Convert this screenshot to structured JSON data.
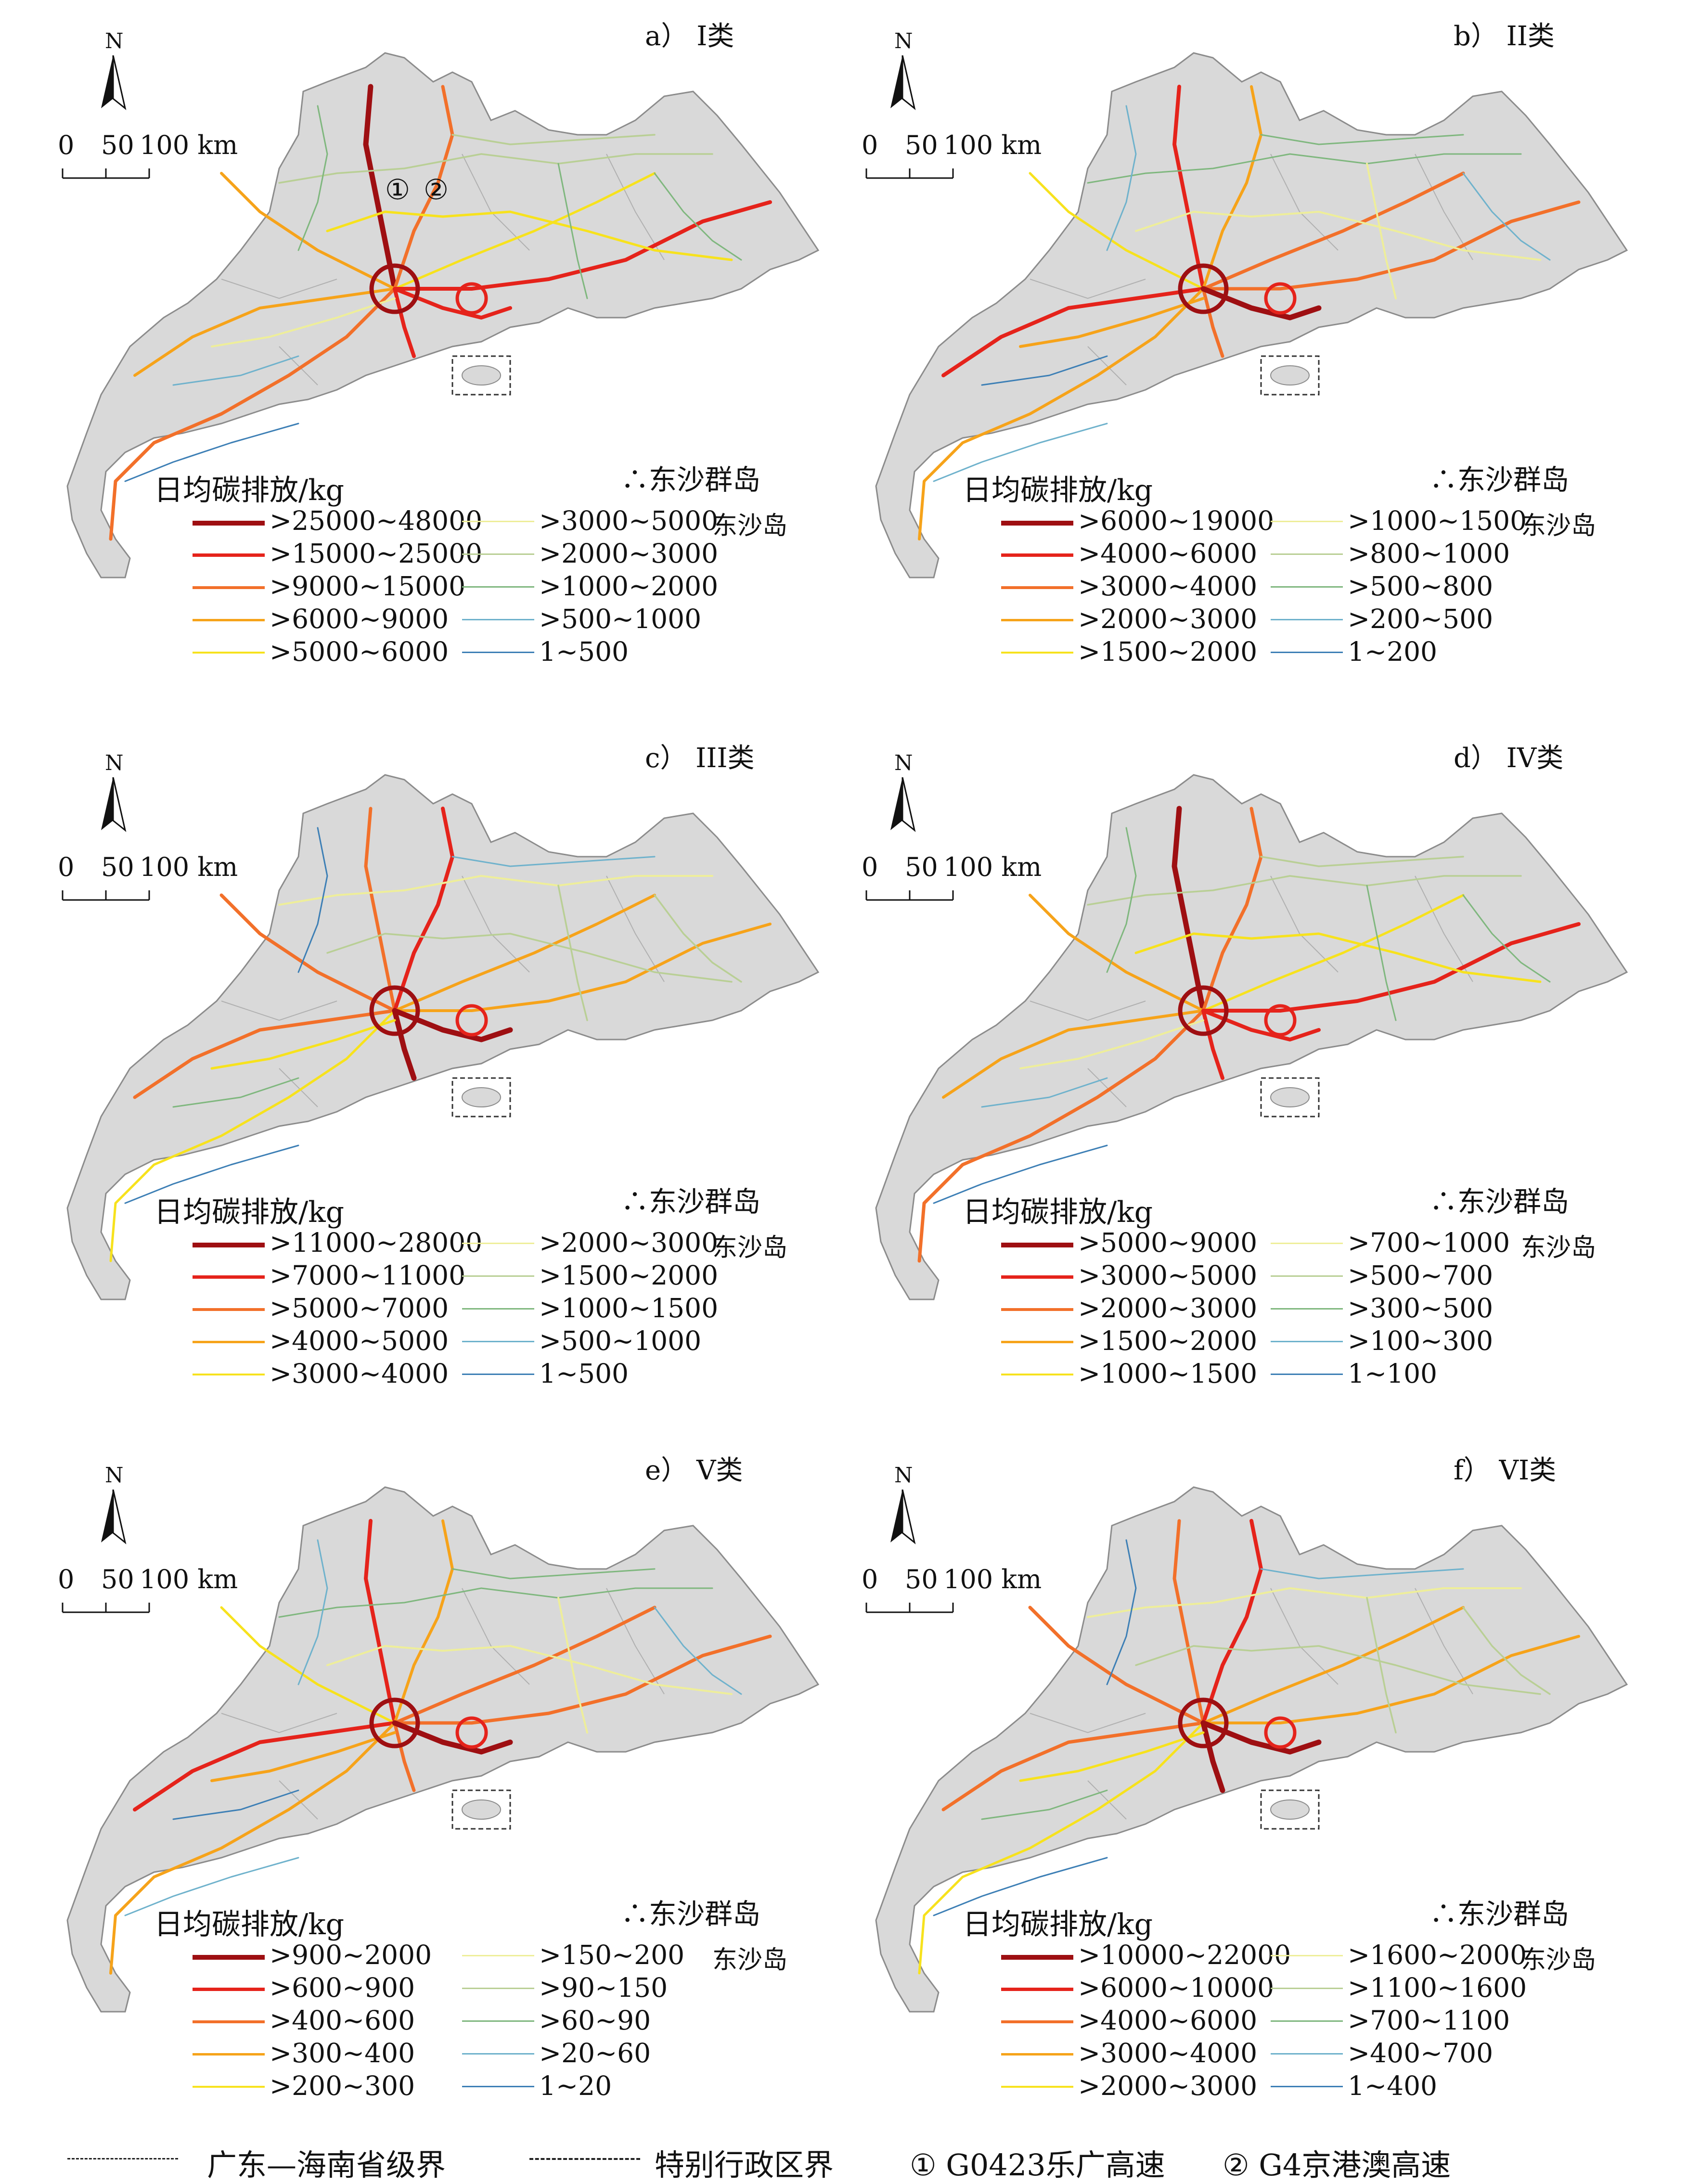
{
  "legend_title": "日均碳排放/kg",
  "island_group": "东沙群岛",
  "island": "东沙岛",
  "north_label": "N",
  "scale": {
    "ticks": [
      "0",
      "50",
      "100 km"
    ]
  },
  "class_colors": [
    "#9e0f12",
    "#e5231b",
    "#f2702a",
    "#f6a31a",
    "#f7e21d",
    "#eeee9a",
    "#b9cf95",
    "#7fb77e",
    "#6fb2cc",
    "#3d7fb5"
  ],
  "panels": [
    {
      "title": "a） I类",
      "markers": [
        "①",
        "②"
      ],
      "legend_left": [
        ">25000~48000",
        ">15000~25000",
        ">9000~15000",
        ">6000~9000",
        ">5000~6000"
      ],
      "legend_right": [
        ">3000~5000",
        ">2000~3000",
        ">1000~2000",
        ">500~1000",
        "1~500"
      ]
    },
    {
      "title": "b） II类",
      "legend_left": [
        ">6000~19000",
        ">4000~6000",
        ">3000~4000",
        ">2000~3000",
        ">1500~2000"
      ],
      "legend_right": [
        ">1000~1500",
        ">800~1000",
        ">500~800",
        ">200~500",
        "1~200"
      ]
    },
    {
      "title": "c） III类",
      "legend_left": [
        ">11000~28000",
        ">7000~11000",
        ">5000~7000",
        ">4000~5000",
        ">3000~4000"
      ],
      "legend_right": [
        ">2000~3000",
        ">1500~2000",
        ">1000~1500",
        ">500~1000",
        "1~500"
      ]
    },
    {
      "title": "d） IV类",
      "legend_left": [
        ">5000~9000",
        ">3000~5000",
        ">2000~3000",
        ">1500~2000",
        ">1000~1500"
      ],
      "legend_right": [
        ">700~1000",
        ">500~700",
        ">300~500",
        ">100~300",
        "1~100"
      ]
    },
    {
      "title": "e） V类",
      "legend_left": [
        ">900~2000",
        ">600~900",
        ">400~600",
        ">300~400",
        ">200~300"
      ],
      "legend_right": [
        ">150~200",
        ">90~150",
        ">60~90",
        ">20~60",
        "1~20"
      ]
    },
    {
      "title": "f） VI类",
      "legend_left": [
        ">10000~22000",
        ">6000~10000",
        ">4000~6000",
        ">3000~4000",
        ">2000~3000"
      ],
      "legend_right": [
        ">1600~2000",
        ">1100~1600",
        ">700~1100",
        ">400~700",
        "1~400"
      ]
    }
  ],
  "bottom_legend": {
    "province_border": "广东—海南省级界",
    "sar_border": "特别行政区界",
    "road1": "① G0423乐广高速",
    "road2": "② G4京港澳高速"
  }
}
